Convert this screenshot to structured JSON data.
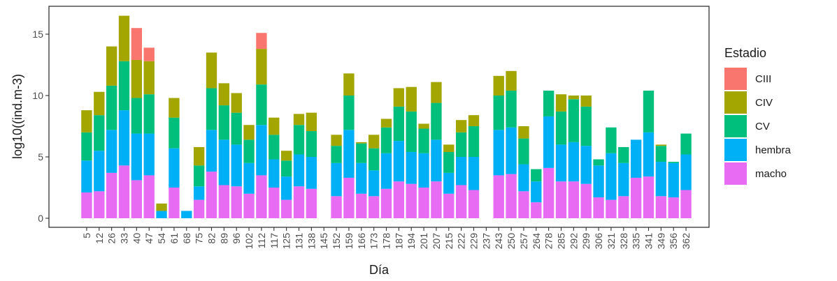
{
  "chart_data": {
    "type": "bar",
    "stacked": true,
    "xlabel": "Día",
    "ylabel": "log10((ind.m-3)",
    "ylim": [
      -0.7,
      17.2
    ],
    "yticks": [
      0,
      5,
      10,
      15
    ],
    "grid": false,
    "legend": {
      "title": "Estadio",
      "placement": "right",
      "entries": [
        "CIII",
        "CIV",
        "CV",
        "hembra",
        "macho"
      ]
    },
    "colors": {
      "CIII": "#F8766D",
      "CIV": "#A3A500",
      "CV": "#00BF7D",
      "hembra": "#00B0F6",
      "macho": "#E76BF3"
    },
    "categories": [
      "5",
      "12",
      "26",
      "33",
      "40",
      "47",
      "54",
      "61",
      "68",
      "75",
      "82",
      "89",
      "96",
      "102",
      "112",
      "117",
      "125",
      "131",
      "138",
      "145",
      "152",
      "159",
      "166",
      "173",
      "178",
      "187",
      "194",
      "201",
      "207",
      "215",
      "222",
      "229",
      "237",
      "243",
      "250",
      "257",
      "264",
      "278",
      "285",
      "292",
      "299",
      "306",
      "321",
      "328",
      "335",
      "341",
      "349",
      "356",
      "362"
    ],
    "series": [
      {
        "name": "macho",
        "values": [
          2.1,
          2.2,
          3.7,
          4.3,
          3.1,
          3.5,
          0,
          2.5,
          0,
          1.5,
          3.8,
          2.7,
          2.6,
          2.0,
          3.5,
          2.5,
          1.5,
          2.6,
          2.4,
          0,
          1.8,
          3.3,
          2.0,
          1.8,
          2.4,
          3.0,
          2.8,
          2.5,
          3.0,
          2.0,
          2.7,
          2.3,
          0,
          3.5,
          3.6,
          2.2,
          1.3,
          4.1,
          3.0,
          3.0,
          2.8,
          1.7,
          1.5,
          1.8,
          3.3,
          3.4,
          1.8,
          1.7,
          2.3
        ]
      },
      {
        "name": "hembra",
        "values": [
          2.6,
          3.3,
          3.5,
          4.5,
          3.8,
          3.4,
          0.6,
          3.2,
          0.6,
          1.1,
          3.4,
          3.7,
          3.4,
          2.5,
          4.1,
          2.3,
          1.9,
          2.6,
          2.6,
          0,
          2.7,
          3.9,
          2.5,
          2.1,
          2.9,
          3.3,
          2.6,
          2.8,
          3.4,
          1.7,
          2.3,
          2.7,
          0,
          3.7,
          3.8,
          2.2,
          1.7,
          4.2,
          3.0,
          3.2,
          3.1,
          2.6,
          3.8,
          2.7,
          3.1,
          3.6,
          2.8,
          2.8,
          2.9
        ]
      },
      {
        "name": "CV",
        "values": [
          2.3,
          2.9,
          3.6,
          4.0,
          2.9,
          3.2,
          0,
          2.5,
          0,
          1.7,
          3.4,
          2.8,
          2.6,
          1.9,
          3.3,
          2.0,
          1.3,
          2.4,
          2.1,
          0,
          1.4,
          2.8,
          1.6,
          1.8,
          2.1,
          2.8,
          3.3,
          2.0,
          3.0,
          1.7,
          2.0,
          2.5,
          0,
          2.8,
          3.0,
          2.1,
          1.0,
          2.1,
          2.7,
          3.5,
          3.2,
          0.5,
          2.1,
          1.3,
          0,
          3.4,
          1.3,
          0.1,
          1.7
        ]
      },
      {
        "name": "CIV",
        "values": [
          1.8,
          1.9,
          3.2,
          3.7,
          3.1,
          2.7,
          0.6,
          1.6,
          0,
          1.5,
          2.9,
          1.8,
          1.6,
          1.2,
          2.9,
          1.4,
          0.8,
          0.9,
          1.5,
          0,
          0.9,
          1.8,
          0.1,
          1.1,
          0.7,
          1.5,
          2.0,
          0.4,
          1.7,
          0.6,
          1.0,
          0.9,
          0,
          1.6,
          1.6,
          1.0,
          0,
          0,
          1.4,
          0.3,
          0.9,
          0,
          0,
          0,
          0,
          0,
          0.1,
          0,
          0
        ]
      },
      {
        "name": "CIII",
        "values": [
          0,
          0,
          0,
          0,
          2.6,
          1.1,
          0,
          0,
          0,
          0,
          0,
          0,
          0,
          0,
          1.3,
          0,
          0,
          0,
          0,
          0,
          0,
          0,
          0,
          0,
          0,
          0,
          0,
          0,
          0,
          0,
          0,
          0,
          0,
          0,
          0,
          0,
          0,
          0,
          0,
          0,
          0,
          0,
          0,
          0,
          0,
          0,
          0,
          0,
          0
        ]
      }
    ]
  }
}
